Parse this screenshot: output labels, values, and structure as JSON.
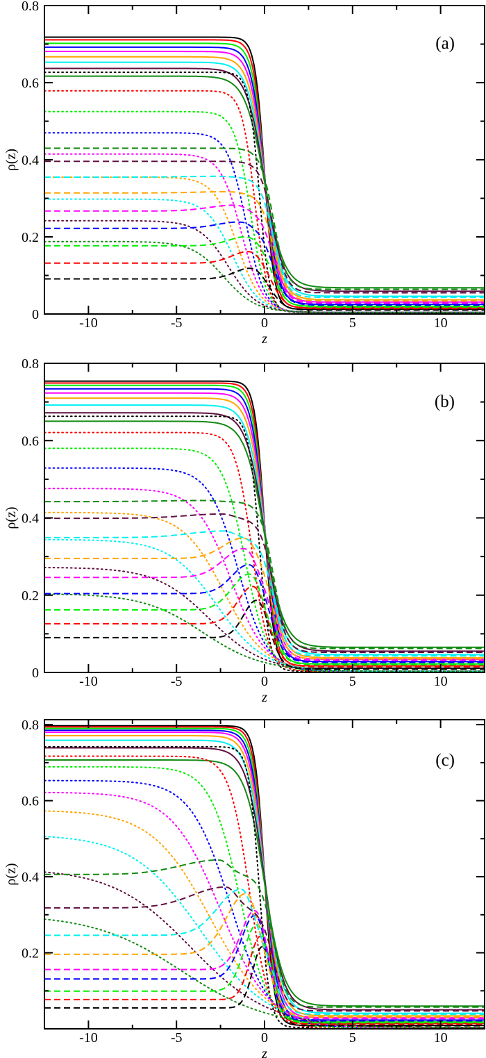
{
  "colors": {
    "black": "#000000",
    "red": "#ff0000",
    "green": "#00ee00",
    "blue": "#0000ff",
    "magenta": "#ff00ff",
    "orange": "#ffa500",
    "cyan": "#00f0f0",
    "maroon": "#5f0f40",
    "darkgreen": "#138a13"
  },
  "chart_data": [
    {
      "type": "line",
      "panel_label": "(a)",
      "xlabel": "z",
      "ylabel": "ρ(z)",
      "xlim": [
        -12.5,
        12.5
      ],
      "ylim": [
        0,
        0.8
      ],
      "xticks": [
        "-10",
        "-5",
        "0",
        "5",
        "10"
      ],
      "xtick_values": [
        -10,
        -5,
        0,
        5,
        10
      ],
      "yticks": [
        "0",
        "0.2",
        "0.4",
        "0.6",
        "0.8"
      ],
      "ytick_values": [
        0,
        0.2,
        0.4,
        0.6,
        0.8
      ],
      "grid": false,
      "series": [
        {
          "color": "black",
          "style": "solid",
          "rho_left": 0.718,
          "rho_right": 0.012
        },
        {
          "color": "red",
          "style": "solid",
          "rho_left": 0.711,
          "rho_right": 0.016
        },
        {
          "color": "green",
          "style": "solid",
          "rho_left": 0.702,
          "rho_right": 0.02
        },
        {
          "color": "blue",
          "style": "solid",
          "rho_left": 0.692,
          "rho_right": 0.025
        },
        {
          "color": "magenta",
          "style": "solid",
          "rho_left": 0.681,
          "rho_right": 0.031
        },
        {
          "color": "orange",
          "style": "solid",
          "rho_left": 0.667,
          "rho_right": 0.037
        },
        {
          "color": "cyan",
          "style": "solid",
          "rho_left": 0.653,
          "rho_right": 0.046
        },
        {
          "color": "maroon",
          "style": "solid",
          "rho_left": 0.637,
          "rho_right": 0.059
        },
        {
          "color": "darkgreen",
          "style": "solid",
          "rho_left": 0.617,
          "rho_right": 0.068
        },
        {
          "color": "black",
          "style": "dotted",
          "rho_left": 0.627,
          "rho_right": 0.004
        },
        {
          "color": "red",
          "style": "dotted",
          "rho_left": 0.579,
          "rho_right": 0.004
        },
        {
          "color": "green",
          "style": "dotted",
          "rho_left": 0.525,
          "rho_right": 0.004
        },
        {
          "color": "blue",
          "style": "dotted",
          "rho_left": 0.47,
          "rho_right": 0.004
        },
        {
          "color": "magenta",
          "style": "dotted",
          "rho_left": 0.415,
          "rho_right": 0.004
        },
        {
          "color": "orange",
          "style": "dotted",
          "rho_left": 0.355,
          "rho_right": 0.004
        },
        {
          "color": "cyan",
          "style": "dotted",
          "rho_left": 0.298,
          "rho_right": 0.004
        },
        {
          "color": "maroon",
          "style": "dotted",
          "rho_left": 0.242,
          "rho_right": 0.004
        },
        {
          "color": "darkgreen",
          "style": "dotted",
          "rho_left": 0.188,
          "rho_right": 0.004
        },
        {
          "color": "black",
          "style": "dashed",
          "rho_left": 0.091,
          "rho_right": 0.01,
          "peak": {
            "z": -0.7,
            "rho": 0.118
          }
        },
        {
          "color": "red",
          "style": "dashed",
          "rho_left": 0.132,
          "rho_right": 0.014,
          "peak": {
            "z": -0.8,
            "rho": 0.161
          }
        },
        {
          "color": "green",
          "style": "dashed",
          "rho_left": 0.177,
          "rho_right": 0.018,
          "peak": {
            "z": -0.9,
            "rho": 0.199
          }
        },
        {
          "color": "blue",
          "style": "dashed",
          "rho_left": 0.222,
          "rho_right": 0.023,
          "peak": {
            "z": -1.3,
            "rho": 0.238
          }
        },
        {
          "color": "magenta",
          "style": "dashed",
          "rho_left": 0.267,
          "rho_right": 0.028,
          "peak": {
            "z": -1.6,
            "rho": 0.282
          }
        },
        {
          "color": "orange",
          "style": "dashed",
          "rho_left": 0.314,
          "rho_right": 0.034,
          "peak": {
            "z": -2.0,
            "rho": 0.317
          }
        },
        {
          "color": "cyan",
          "style": "dashed",
          "rho_left": 0.355,
          "rho_right": 0.043,
          "peak": {
            "z": -2.5,
            "rho": 0.357
          }
        },
        {
          "color": "maroon",
          "style": "dashed",
          "rho_left": 0.396,
          "rho_right": 0.055
        },
        {
          "color": "darkgreen",
          "style": "dashed",
          "rho_left": 0.43,
          "rho_right": 0.064
        }
      ]
    },
    {
      "type": "line",
      "panel_label": "(b)",
      "xlabel": "z",
      "ylabel": "ρ(z)",
      "xlim": [
        -12.5,
        12.5
      ],
      "ylim": [
        0,
        0.8
      ],
      "xticks": [
        "-10",
        "-5",
        "0",
        "5",
        "10"
      ],
      "xtick_values": [
        -10,
        -5,
        0,
        5,
        10
      ],
      "yticks": [
        "0",
        "0.2",
        "0.4",
        "0.6",
        "0.8"
      ],
      "ytick_values": [
        0,
        0.2,
        0.4,
        0.6,
        0.8
      ],
      "grid": false,
      "series": [
        {
          "color": "black",
          "style": "solid",
          "rho_left": 0.754,
          "rho_right": 0.011
        },
        {
          "color": "red",
          "style": "solid",
          "rho_left": 0.749,
          "rho_right": 0.017
        },
        {
          "color": "green",
          "style": "solid",
          "rho_left": 0.743,
          "rho_right": 0.022
        },
        {
          "color": "blue",
          "style": "solid",
          "rho_left": 0.734,
          "rho_right": 0.028
        },
        {
          "color": "magenta",
          "style": "solid",
          "rho_left": 0.723,
          "rho_right": 0.034
        },
        {
          "color": "orange",
          "style": "solid",
          "rho_left": 0.71,
          "rho_right": 0.038
        },
        {
          "color": "cyan",
          "style": "solid",
          "rho_left": 0.692,
          "rho_right": 0.046
        },
        {
          "color": "maroon",
          "style": "solid",
          "rho_left": 0.672,
          "rho_right": 0.055
        },
        {
          "color": "darkgreen",
          "style": "solid",
          "rho_left": 0.65,
          "rho_right": 0.065
        },
        {
          "color": "black",
          "style": "dotted",
          "rho_left": 0.663,
          "rho_right": 0.003
        },
        {
          "color": "red",
          "style": "dotted",
          "rho_left": 0.621,
          "rho_right": 0.003
        },
        {
          "color": "green",
          "style": "dotted",
          "rho_left": 0.58,
          "rho_right": 0.003
        },
        {
          "color": "blue",
          "style": "dotted",
          "rho_left": 0.529,
          "rho_right": 0.003
        },
        {
          "color": "magenta",
          "style": "dotted",
          "rho_left": 0.476,
          "rho_right": 0.003
        },
        {
          "color": "orange",
          "style": "dotted",
          "rho_left": 0.414,
          "rho_right": 0.003
        },
        {
          "color": "cyan",
          "style": "dotted",
          "rho_left": 0.344,
          "rho_right": 0.003
        },
        {
          "color": "maroon",
          "style": "dotted",
          "rho_left": 0.272,
          "rho_right": 0.003
        },
        {
          "color": "darkgreen",
          "style": "dotted",
          "rho_left": 0.204,
          "rho_right": 0.003
        },
        {
          "color": "black",
          "style": "dashed",
          "rho_left": 0.09,
          "rho_right": 0.009,
          "peak": {
            "z": -0.4,
            "rho": 0.186
          }
        },
        {
          "color": "red",
          "style": "dashed",
          "rho_left": 0.126,
          "rho_right": 0.015,
          "peak": {
            "z": -0.6,
            "rho": 0.222
          }
        },
        {
          "color": "green",
          "style": "dashed",
          "rho_left": 0.162,
          "rho_right": 0.02,
          "peak": {
            "z": -0.8,
            "rho": 0.254
          }
        },
        {
          "color": "blue",
          "style": "dashed",
          "rho_left": 0.204,
          "rho_right": 0.026,
          "peak": {
            "z": -0.8,
            "rho": 0.278
          }
        },
        {
          "color": "magenta",
          "style": "dashed",
          "rho_left": 0.246,
          "rho_right": 0.031,
          "peak": {
            "z": -1.1,
            "rho": 0.32
          }
        },
        {
          "color": "orange",
          "style": "dashed",
          "rho_left": 0.295,
          "rho_right": 0.035,
          "peak": {
            "z": -1.1,
            "rho": 0.347
          }
        },
        {
          "color": "cyan",
          "style": "dashed",
          "rho_left": 0.349,
          "rho_right": 0.043,
          "peak": {
            "z": -2.3,
            "rho": 0.366
          }
        },
        {
          "color": "maroon",
          "style": "dashed",
          "rho_left": 0.399,
          "rho_right": 0.052,
          "peak": {
            "z": -2.4,
            "rho": 0.41
          }
        },
        {
          "color": "darkgreen",
          "style": "dashed",
          "rho_left": 0.442,
          "rho_right": 0.062,
          "peak": {
            "z": -3.3,
            "rho": 0.445
          }
        }
      ]
    },
    {
      "type": "line",
      "panel_label": "(c)",
      "xlabel": "z",
      "ylabel": "ρ(z)",
      "xlim": [
        -12.5,
        12.5
      ],
      "ylim": [
        0,
        0.813
      ],
      "xticks": [
        "-10",
        "-5",
        "0",
        "5",
        "10"
      ],
      "xtick_values": [
        -10,
        -5,
        0,
        5,
        10
      ],
      "yticks": [
        "0.2",
        "0.4",
        "0.6",
        "0.8"
      ],
      "ytick_values": [
        0.2,
        0.4,
        0.6,
        0.8
      ],
      "grid": false,
      "series": [
        {
          "color": "black",
          "style": "solid",
          "rho_left": 0.797,
          "rho_right": 0.009
        },
        {
          "color": "red",
          "style": "solid",
          "rho_left": 0.794,
          "rho_right": 0.014
        },
        {
          "color": "green",
          "style": "solid",
          "rho_left": 0.79,
          "rho_right": 0.018
        },
        {
          "color": "blue",
          "style": "solid",
          "rho_left": 0.785,
          "rho_right": 0.023
        },
        {
          "color": "magenta",
          "style": "solid",
          "rho_left": 0.78,
          "rho_right": 0.029
        },
        {
          "color": "orange",
          "style": "solid",
          "rho_left": 0.771,
          "rho_right": 0.034
        },
        {
          "color": "cyan",
          "style": "solid",
          "rho_left": 0.759,
          "rho_right": 0.041
        },
        {
          "color": "maroon",
          "style": "solid",
          "rho_left": 0.739,
          "rho_right": 0.05
        },
        {
          "color": "darkgreen",
          "style": "solid",
          "rho_left": 0.707,
          "rho_right": 0.06
        },
        {
          "color": "black",
          "style": "dotted",
          "rho_left": 0.742,
          "rho_right": 0.003
        },
        {
          "color": "red",
          "style": "dotted",
          "rho_left": 0.717,
          "rho_right": 0.003
        },
        {
          "color": "green",
          "style": "dotted",
          "rho_left": 0.689,
          "rho_right": 0.003
        },
        {
          "color": "blue",
          "style": "dotted",
          "rho_left": 0.653,
          "rho_right": 0.003
        },
        {
          "color": "magenta",
          "style": "dotted",
          "rho_left": 0.622,
          "rho_right": 0.003
        },
        {
          "color": "orange",
          "style": "dotted",
          "rho_left": 0.575,
          "rho_right": 0.003
        },
        {
          "color": "cyan",
          "style": "dotted",
          "rho_left": 0.511,
          "rho_right": 0.003
        },
        {
          "color": "maroon",
          "style": "dotted",
          "rho_left": 0.422,
          "rho_right": 0.003
        },
        {
          "color": "darkgreen",
          "style": "dotted",
          "rho_left": 0.301,
          "rho_right": 0.003
        },
        {
          "color": "black",
          "style": "dashed",
          "rho_left": 0.055,
          "rho_right": 0.008,
          "peak": {
            "z": -0.1,
            "rho": 0.216
          }
        },
        {
          "color": "red",
          "style": "dashed",
          "rho_left": 0.077,
          "rho_right": 0.012,
          "peak": {
            "z": -0.2,
            "rho": 0.243
          }
        },
        {
          "color": "green",
          "style": "dashed",
          "rho_left": 0.099,
          "rho_right": 0.016,
          "peak": {
            "z": -0.4,
            "rho": 0.274
          }
        },
        {
          "color": "blue",
          "style": "dashed",
          "rho_left": 0.131,
          "rho_right": 0.021,
          "peak": {
            "z": -0.5,
            "rho": 0.298
          }
        },
        {
          "color": "magenta",
          "style": "dashed",
          "rho_left": 0.156,
          "rho_right": 0.027,
          "peak": {
            "z": -0.5,
            "rho": 0.31
          }
        },
        {
          "color": "orange",
          "style": "dashed",
          "rho_left": 0.196,
          "rho_right": 0.031,
          "peak": {
            "z": -1.0,
            "rho": 0.356
          }
        },
        {
          "color": "cyan",
          "style": "dashed",
          "rho_left": 0.246,
          "rho_right": 0.038,
          "peak": {
            "z": -1.3,
            "rho": 0.367
          }
        },
        {
          "color": "maroon",
          "style": "dashed",
          "rho_left": 0.318,
          "rho_right": 0.047,
          "peak": {
            "z": -2.2,
            "rho": 0.373
          }
        },
        {
          "color": "darkgreen",
          "style": "dashed",
          "rho_left": 0.406,
          "rho_right": 0.057,
          "peak": {
            "z": -2.6,
            "rho": 0.444
          }
        }
      ]
    }
  ]
}
